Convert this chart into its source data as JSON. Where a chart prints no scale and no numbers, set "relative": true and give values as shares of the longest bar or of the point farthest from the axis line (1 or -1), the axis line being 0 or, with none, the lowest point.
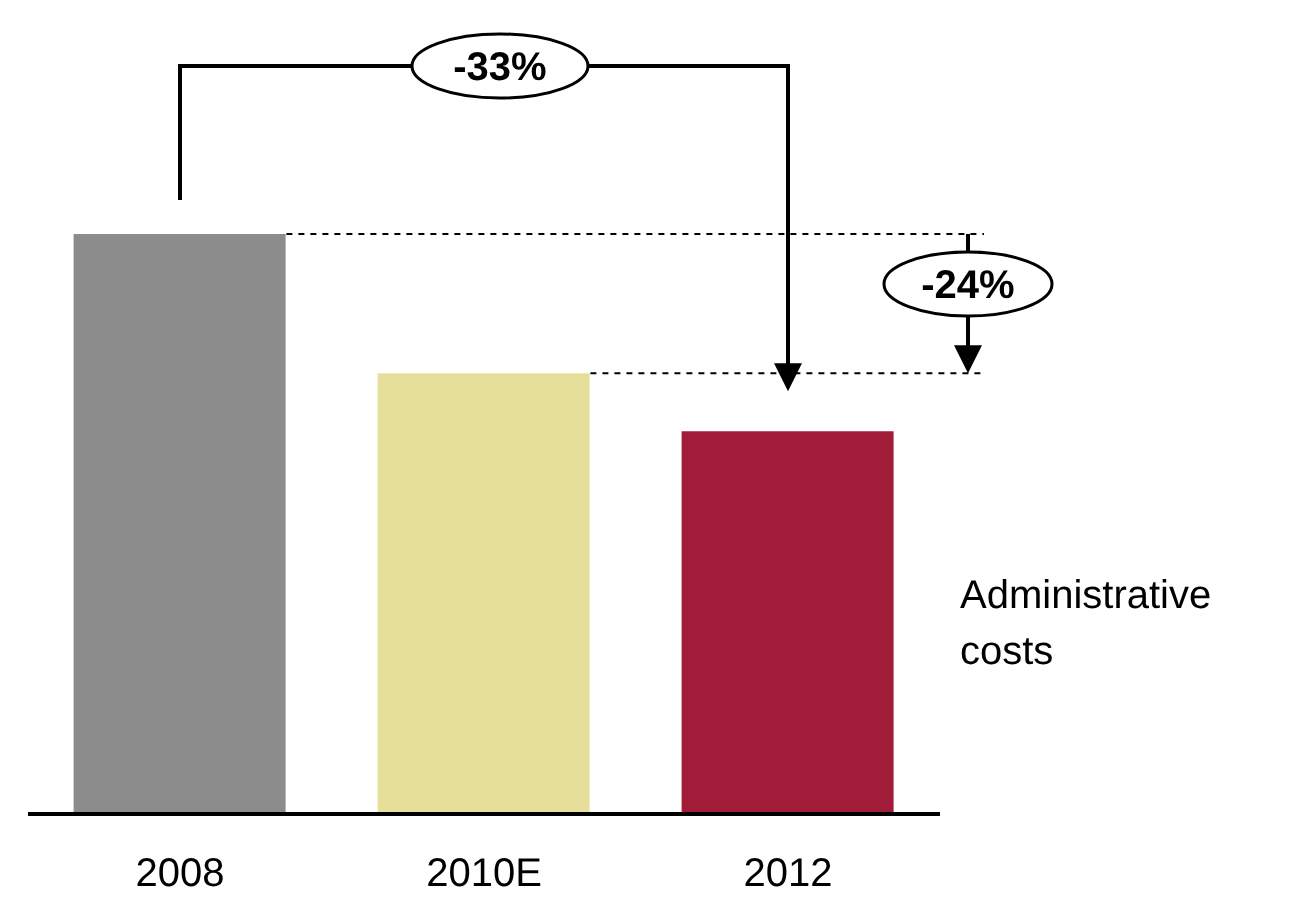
{
  "chart_data": {
    "type": "bar",
    "relative": true,
    "categories": [
      "2008",
      "2010E",
      "2012"
    ],
    "values": [
      1,
      0.76,
      0.66
    ],
    "colors": [
      "#8c8c8c",
      "#e6df9a",
      "#a01c38"
    ],
    "annotations": [
      "-33%",
      "-24%",
      "Administrative costs"
    ]
  }
}
